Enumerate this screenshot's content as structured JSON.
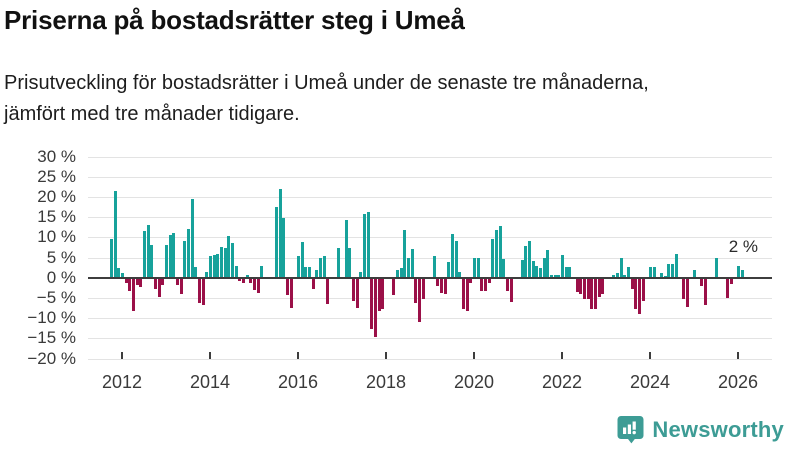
{
  "header": {
    "title": "Priserna på bostadsrätter steg i Umeå",
    "subtitle_line1": "Prisutveckling för bostadsrätter i Umeå under de senaste tre månaderna,",
    "subtitle_line2": "jämfört med tre månader tidigare."
  },
  "chart_data": {
    "type": "bar",
    "title": "Priserna på bostadsrätter steg i Umeå",
    "ylabel": "",
    "xlabel": "",
    "unit": "%",
    "frequency": "monthly",
    "start_month": "2011-10",
    "end_month": "2026-02",
    "ylim": [
      -20,
      30
    ],
    "grid": "horizontal",
    "legend_position": "none",
    "yticks": [
      30,
      25,
      20,
      15,
      10,
      5,
      0,
      -5,
      -10,
      -15,
      -20
    ],
    "ytick_suffix": " %",
    "xticks": [
      2012,
      2014,
      2016,
      2018,
      2020,
      2022,
      2024,
      2026
    ],
    "annotation": {
      "text": "2 %",
      "value": 2,
      "refers_to": "last-bar"
    },
    "colors": {
      "positive": "#17a29b",
      "negative": "#9b1048",
      "axis": "#3d3d3d",
      "grid": "#e3e3e3"
    },
    "values": [
      9.5,
      21.5,
      2.5,
      1.2,
      -1.2,
      -3.0,
      -8.0,
      -1.5,
      -2.0,
      11.5,
      13.0,
      8.2,
      -2.5,
      -4.5,
      -1.5,
      8.0,
      10.5,
      11.0,
      -1.5,
      -3.8,
      9.0,
      12.0,
      19.5,
      2.6,
      -6.0,
      -6.5,
      1.4,
      5.3,
      5.6,
      6.0,
      7.5,
      7.3,
      10.3,
      8.5,
      3.0,
      -0.7,
      -1.0,
      0.8,
      -1.2,
      -2.8,
      -3.5,
      2.8,
      0,
      0,
      0,
      17.5,
      21.9,
      14.7,
      -4.0,
      -7.3,
      0,
      5.4,
      8.9,
      2.7,
      2.6,
      -2.5,
      1.9,
      5.0,
      5.4,
      -6.2,
      0,
      0,
      7.3,
      0,
      14.3,
      7.4,
      -5.5,
      -7.2,
      1.3,
      15.8,
      16.2,
      -12.5,
      -14.5,
      -8.0,
      -7.5,
      0,
      0,
      -4.0,
      1.8,
      2.4,
      11.7,
      4.9,
      7.0,
      -6.0,
      -10.8,
      -5.0,
      0,
      0,
      5.4,
      -1.7,
      -3.5,
      -3.7,
      4.0,
      10.8,
      9.0,
      1.3,
      -7.4,
      -8.0,
      -1.2,
      4.8,
      4.8,
      -3.1,
      -3.1,
      -1.0,
      9.7,
      11.8,
      12.8,
      4.6,
      -3.1,
      -5.9,
      0,
      0,
      4.4,
      7.8,
      9.2,
      4.2,
      2.9,
      2.3,
      4.8,
      6.8,
      0.7,
      0.7,
      0.7,
      5.6,
      2.6,
      2.6,
      0,
      -3.3,
      -3.9,
      -5.1,
      -5.1,
      -7.4,
      -7.6,
      -4.5,
      -3.7,
      0,
      0,
      0.7,
      1.1,
      4.8,
      0.7,
      2.7,
      -2.5,
      -7.6,
      -8.7,
      -5.5,
      0,
      2.7,
      2.7,
      0,
      1.1,
      0.5,
      3.5,
      3.5,
      5.8,
      0,
      -5.0,
      -6.9,
      0,
      1.9,
      0,
      -1.8,
      -6.5,
      0,
      0,
      5.0,
      0,
      0,
      -4.7,
      -1.4,
      0,
      2.9,
      2.0
    ]
  },
  "footer": {
    "brand": "Newsworthy",
    "brand_color": "#3d9c95",
    "logo_icon": "newsworthy-barchart-badge"
  }
}
